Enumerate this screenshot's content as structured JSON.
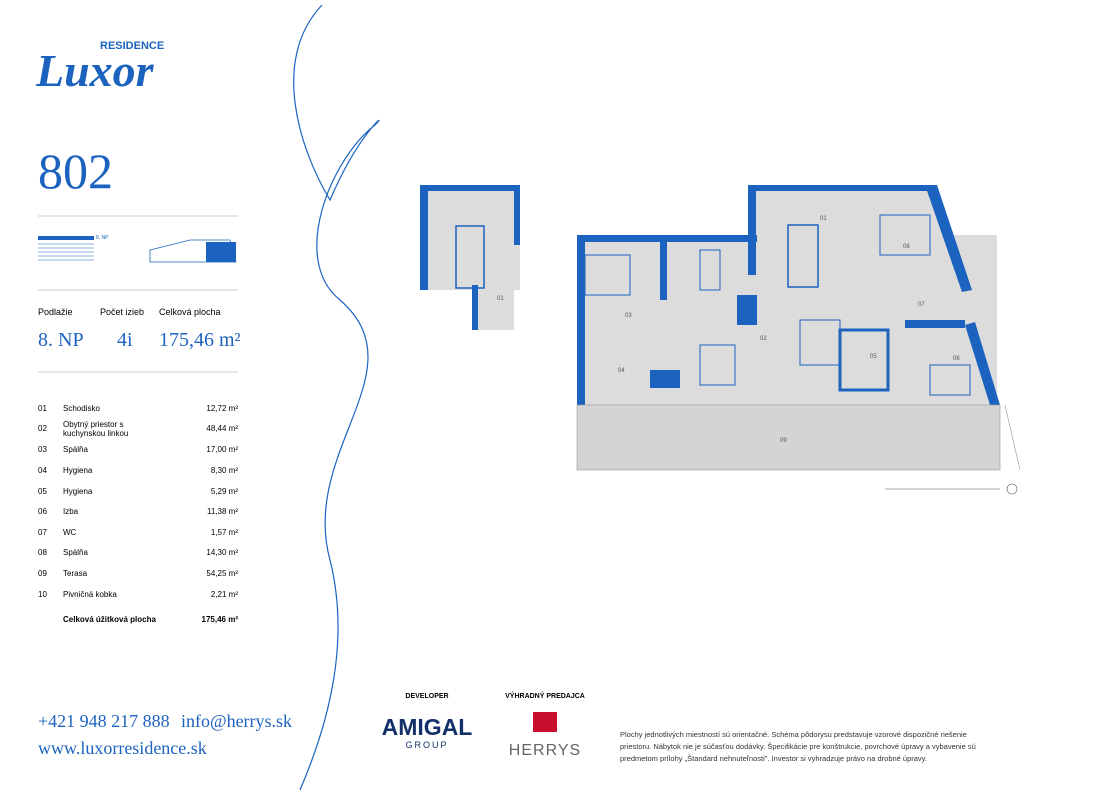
{
  "logo": {
    "small": "RESIDENCE",
    "main": "Luxor"
  },
  "unit": "802",
  "mini_plan_label": "8. NP",
  "summary": {
    "headers": [
      "Podlažie",
      "Počet izieb",
      "Celková plocha"
    ],
    "values": [
      "8. NP",
      "4i",
      "175,46 m²"
    ]
  },
  "rooms": [
    {
      "no": "01",
      "name": "Schodisko",
      "area": "12,72 m²"
    },
    {
      "no": "02",
      "name": "Obytný priestor s kuchynskou linkou",
      "area": "48,44 m²"
    },
    {
      "no": "03",
      "name": "Spálňa",
      "area": "17,00 m²"
    },
    {
      "no": "04",
      "name": "Hygiena",
      "area": "8,30 m²"
    },
    {
      "no": "05",
      "name": "Hygiena",
      "area": "5,29 m²"
    },
    {
      "no": "06",
      "name": "Izba",
      "area": "11,38 m²"
    },
    {
      "no": "07",
      "name": "WC",
      "area": "1,57 m²"
    },
    {
      "no": "08",
      "name": "Spálňa",
      "area": "14,30 m²"
    },
    {
      "no": "09",
      "name": "Terasa",
      "area": "54,25 m²"
    },
    {
      "no": "10",
      "name": "Pivničná kobka",
      "area": "2,21 m²"
    }
  ],
  "total": {
    "label": "Celková úžitková plocha",
    "area": "175,46 m²"
  },
  "plan_labels": [
    "01",
    "01",
    "02",
    "03",
    "04",
    "05",
    "06",
    "07",
    "08",
    "09"
  ],
  "contact": {
    "phone": "+421 948 217 888",
    "email": "info@herrys.sk",
    "web": "www.luxorresidence.sk"
  },
  "developer": {
    "label": "DEVELOPER",
    "name": "AMIGAL",
    "sub": "GROUP"
  },
  "sales": {
    "label": "VÝHRADNÝ PREDAJCA",
    "name": "HERRYS"
  },
  "disclaimer": [
    "Plochy jednotlivých miestností sú orientačné. Schéma pôdorysu predstavuje vzorové dispozičné riešenie",
    "priestoru. Nábytok nie je súčasťou dodávky. Špecifikácie pre konštrukcie, povrchové úpravy a vybavenie sú",
    "predmetom prílohy „Štandard nehnuteľnosti\". Investor si vyhradzuje právo na drobné úpravy."
  ]
}
